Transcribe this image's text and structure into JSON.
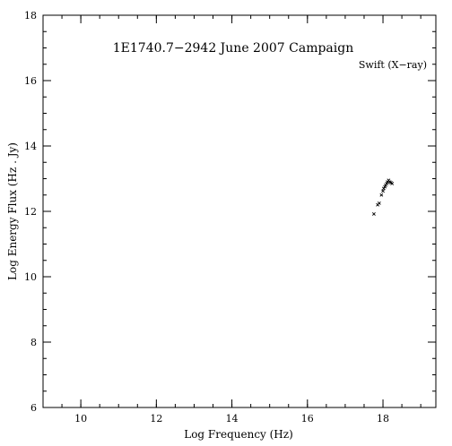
{
  "chart_data": {
    "type": "scatter",
    "title": "1E1740.7−2942 June 2007 Campaign",
    "annotation": "Swift (X−ray)",
    "xlabel": "Log Frequency (Hz)",
    "ylabel": "Log Energy Flux (Hz . Jy)",
    "xlim": [
      9.0,
      13.4
    ],
    "ylim": [
      6,
      18
    ],
    "xticks": [
      10,
      12,
      14,
      16,
      18
    ],
    "yticks": [
      6,
      8,
      10,
      12,
      14,
      16,
      18
    ],
    "x_minor_step": 0.5,
    "y_minor_step": 0.5,
    "grid": false,
    "series": [
      {
        "values": [
          {
            "x": 17.76,
            "y": 11.92
          },
          {
            "x": 17.86,
            "y": 12.2
          },
          {
            "x": 17.9,
            "y": 12.25
          },
          {
            "x": 17.96,
            "y": 12.5
          },
          {
            "x": 18.0,
            "y": 12.62
          },
          {
            "x": 18.02,
            "y": 12.7
          },
          {
            "x": 18.05,
            "y": 12.75
          },
          {
            "x": 18.07,
            "y": 12.8
          },
          {
            "x": 18.1,
            "y": 12.85
          },
          {
            "x": 18.12,
            "y": 12.9
          },
          {
            "x": 18.15,
            "y": 12.95
          },
          {
            "x": 18.18,
            "y": 12.9
          },
          {
            "x": 18.21,
            "y": 12.88
          },
          {
            "x": 18.24,
            "y": 12.85
          }
        ]
      }
    ]
  }
}
